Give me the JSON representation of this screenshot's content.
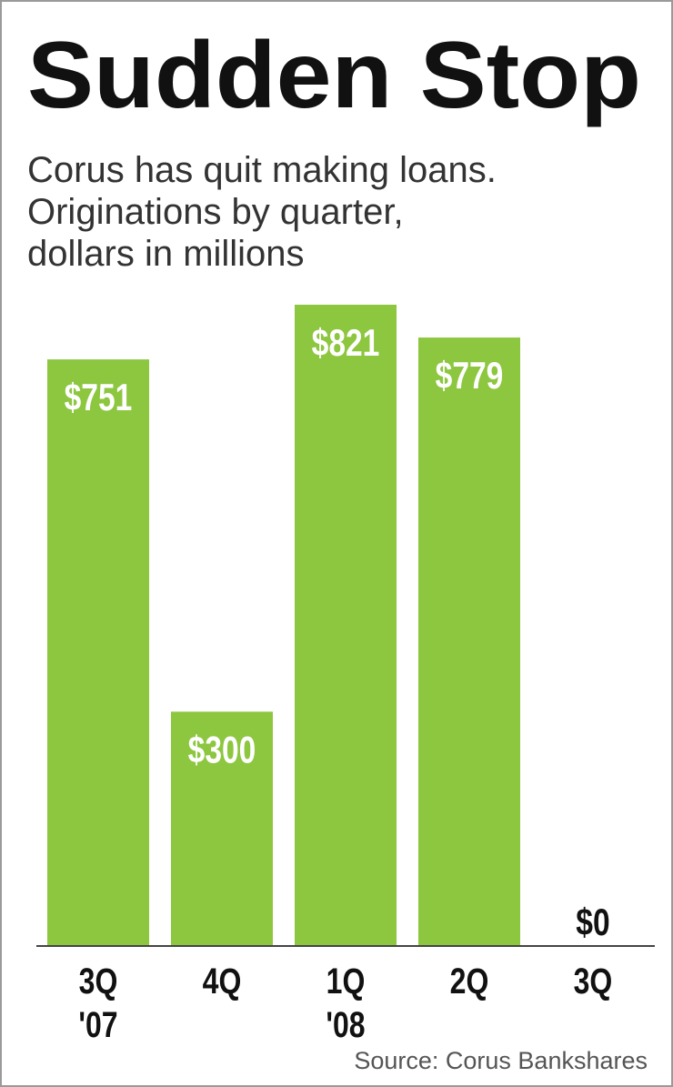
{
  "chart_data": {
    "type": "bar",
    "title": "Sudden Stop",
    "subtitle": [
      "Corus has quit making loans.",
      "Originations by quarter,",
      "dollars in millions"
    ],
    "categories": [
      [
        "3Q",
        "'07"
      ],
      [
        "4Q"
      ],
      [
        "1Q",
        "'08"
      ],
      [
        "2Q"
      ],
      [
        "3Q"
      ]
    ],
    "values": [
      751,
      300,
      821,
      779,
      0
    ],
    "value_labels": [
      "$751",
      "$300",
      "$821",
      "$779",
      "$0"
    ],
    "color": "#8dc63f",
    "source": "Source: Corus Bankshares"
  }
}
